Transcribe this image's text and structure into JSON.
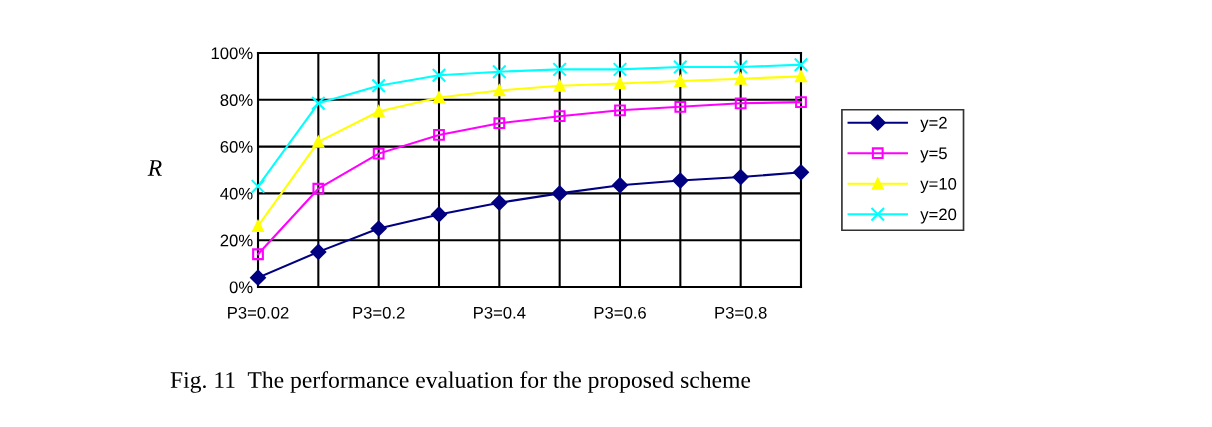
{
  "chart_data": {
    "type": "line",
    "ylabel": "R",
    "categories": [
      "P3=0.02",
      null,
      "P3=0.2",
      null,
      "P3=0.4",
      null,
      "P3=0.6",
      null,
      "P3=0.8",
      null
    ],
    "series": [
      {
        "name": "y=2",
        "color": "#000080",
        "marker": "diamond",
        "values": [
          4,
          15,
          25,
          31,
          36,
          40,
          43.5,
          45.5,
          47,
          49
        ]
      },
      {
        "name": "y=5",
        "color": "#ff00ff",
        "marker": "square",
        "values": [
          14,
          42,
          57,
          65,
          70,
          73,
          75.5,
          77,
          78.5,
          79
        ]
      },
      {
        "name": "y=10",
        "color": "#ffff00",
        "marker": "triangle",
        "values": [
          26,
          62,
          75,
          81,
          84,
          86,
          87,
          88,
          89,
          90
        ]
      },
      {
        "name": "y=20",
        "color": "#00ffff",
        "marker": "cross",
        "values": [
          43,
          78.5,
          86,
          90.5,
          92,
          93,
          93,
          94,
          94,
          95
        ]
      }
    ],
    "ylim": [
      0,
      100
    ],
    "yticks": [
      {
        "value": 0,
        "label": "0%"
      },
      {
        "value": 20,
        "label": "20%"
      },
      {
        "value": 40,
        "label": "40%"
      },
      {
        "value": 60,
        "label": "60%"
      },
      {
        "value": 80,
        "label": "80%"
      },
      {
        "value": 100,
        "label": "100%"
      }
    ],
    "grid": true,
    "legend": "right",
    "annotations": [
      "Fig. 11  The performance evaluation for the proposed scheme"
    ]
  }
}
